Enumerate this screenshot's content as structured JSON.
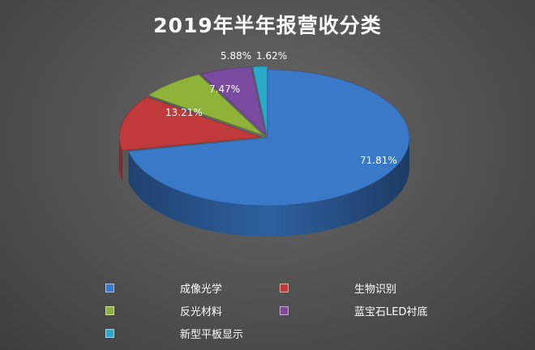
{
  "chart_data": {
    "type": "pie",
    "title": "2019年半年报营收分类",
    "slices": [
      {
        "name": "成像光学",
        "value": 71.81,
        "label": "71.81%",
        "color": "#3a78c8"
      },
      {
        "name": "生物识别",
        "value": 13.21,
        "label": "13.21%",
        "color": "#c0393b"
      },
      {
        "name": "反光材料",
        "value": 7.47,
        "label": "7.47%",
        "color": "#8fb339"
      },
      {
        "name": "蓝宝石LED衬底",
        "value": 5.88,
        "label": "5.88%",
        "color": "#7a4a9e"
      },
      {
        "name": "新型平板显示",
        "value": 1.62,
        "label": "1.62%",
        "color": "#2aa9c9"
      }
    ],
    "legend_position": "bottom"
  }
}
